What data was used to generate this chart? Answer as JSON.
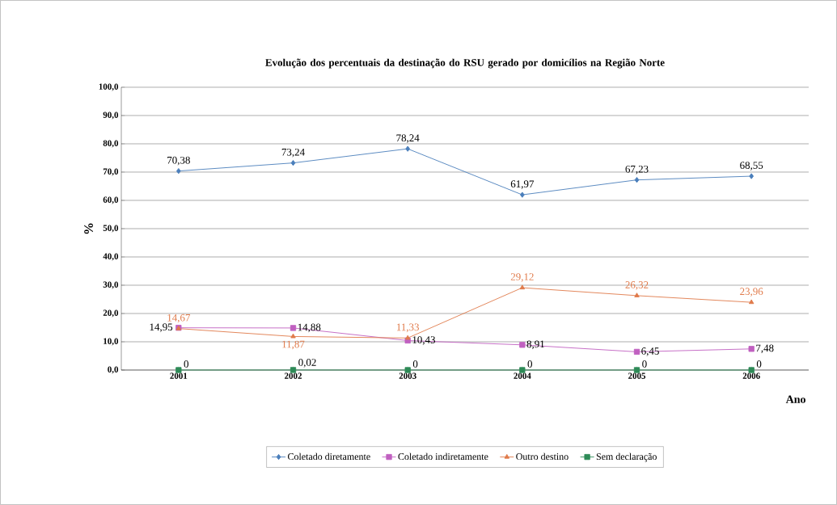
{
  "chart_data": {
    "type": "line",
    "title": "Evolução dos percentuais da destinação do RSU gerado por domicílios na Região Norte",
    "xlabel": "Ano",
    "ylabel": "%",
    "categories": [
      "2001",
      "2002",
      "2003",
      "2004",
      "2005",
      "2006"
    ],
    "series": [
      {
        "name": "Coletado diretamente",
        "color": "#4a7ebb",
        "marker": "diamond",
        "values": [
          70.38,
          73.24,
          78.24,
          61.97,
          67.23,
          68.55
        ],
        "value_labels": [
          "70,38",
          "73,24",
          "78,24",
          "61,97",
          "67,23",
          "68,55"
        ]
      },
      {
        "name": "Coletado indiretamente",
        "color": "#c060c0",
        "marker": "square",
        "values": [
          14.95,
          14.88,
          10.43,
          8.91,
          6.45,
          7.48
        ],
        "value_labels": [
          "14,95",
          "14,88",
          "10,43",
          "8,91",
          "6,45",
          "7,48"
        ]
      },
      {
        "name": "Outro destino",
        "color": "#e07a4a",
        "marker": "triangle",
        "values": [
          14.67,
          11.87,
          11.33,
          29.12,
          26.32,
          23.96
        ],
        "value_labels": [
          "14,67",
          "11,87",
          "11,33",
          "29,12",
          "26,32",
          "23,96"
        ]
      },
      {
        "name": "Sem declaração",
        "color": "#2e8b57",
        "marker": "square",
        "values": [
          0,
          0.02,
          0,
          0,
          0,
          0
        ],
        "value_labels": [
          "0",
          "0,02",
          "0",
          "0",
          "0",
          "0"
        ]
      }
    ],
    "ylim": [
      0,
      100
    ],
    "yticks": [
      {
        "value": 0,
        "label": "0,0"
      },
      {
        "value": 10,
        "label": "10,0"
      },
      {
        "value": 20,
        "label": "20,0"
      },
      {
        "value": 30,
        "label": "30,0"
      },
      {
        "value": 40,
        "label": "40,0"
      },
      {
        "value": 50,
        "label": "50,0"
      },
      {
        "value": 60,
        "label": "60,0"
      },
      {
        "value": 70,
        "label": "70,0"
      },
      {
        "value": 80,
        "label": "80,0"
      },
      {
        "value": 90,
        "label": "90,0"
      },
      {
        "value": 100,
        "label": "100,0"
      }
    ],
    "grid": "y",
    "legend": "bottom",
    "line_style": "solid"
  }
}
